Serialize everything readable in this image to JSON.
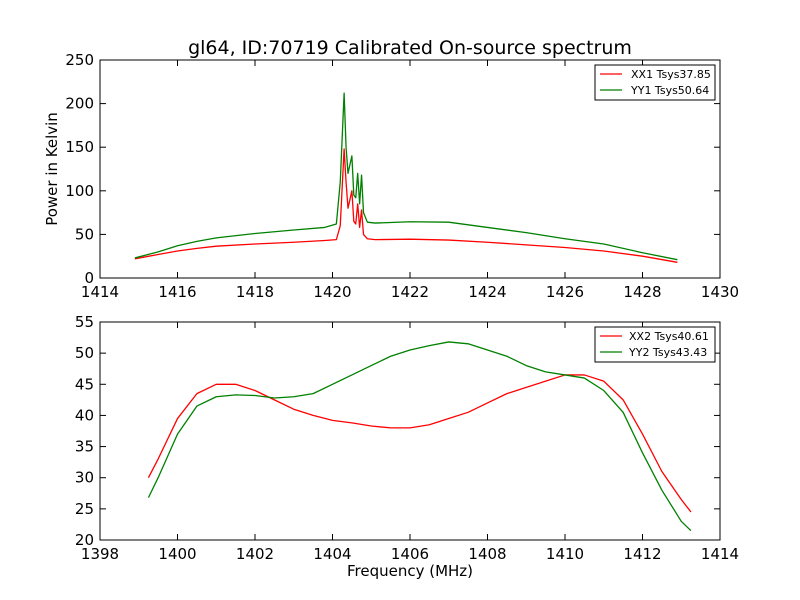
{
  "chart_data": [
    {
      "type": "line",
      "title": "gl64, ID:70719 Calibrated On-source spectrum",
      "xlabel": "",
      "ylabel": "Power in Kelvin",
      "xlim": [
        1414,
        1430
      ],
      "ylim": [
        0,
        250
      ],
      "xticks": [
        "1414",
        "1416",
        "1418",
        "1420",
        "1422",
        "1424",
        "1426",
        "1428",
        "1430"
      ],
      "yticks": [
        "0",
        "50",
        "100",
        "150",
        "200",
        "250"
      ],
      "grid": false,
      "legend_position": "top-right",
      "series": [
        {
          "name": "XX1 Tsys37.85",
          "color": "#ff0000",
          "x": [
            1414.9,
            1415.5,
            1416,
            1416.5,
            1417,
            1418,
            1419,
            1419.8,
            1420.1,
            1420.2,
            1420.3,
            1420.35,
            1420.4,
            1420.5,
            1420.55,
            1420.6,
            1420.65,
            1420.7,
            1420.75,
            1420.8,
            1420.9,
            1421.1,
            1422,
            1423,
            1424,
            1425,
            1426,
            1427,
            1428,
            1428.9
          ],
          "y": [
            22,
            27,
            31,
            34,
            36.5,
            39,
            41,
            43,
            44,
            60,
            148,
            110,
            80,
            100,
            65,
            62,
            85,
            58,
            78,
            50,
            45,
            44,
            44.5,
            43.5,
            41,
            38,
            35,
            31,
            25,
            18
          ]
        },
        {
          "name": "YY1 Tsys50.64",
          "color": "#008000",
          "x": [
            1414.9,
            1415.5,
            1416,
            1416.5,
            1417,
            1418,
            1419,
            1419.8,
            1420.1,
            1420.2,
            1420.3,
            1420.35,
            1420.4,
            1420.5,
            1420.55,
            1420.6,
            1420.65,
            1420.7,
            1420.75,
            1420.8,
            1420.9,
            1421.1,
            1422,
            1423,
            1424,
            1425,
            1426,
            1427,
            1428,
            1428.9
          ],
          "y": [
            23,
            30,
            37,
            42,
            46,
            51,
            55,
            58,
            62,
            110,
            212,
            150,
            120,
            140,
            95,
            92,
            120,
            85,
            118,
            75,
            64,
            63,
            64.5,
            64,
            58,
            52,
            45,
            39,
            29,
            21
          ]
        }
      ]
    },
    {
      "type": "line",
      "title": "",
      "xlabel": "Frequency (MHz)",
      "ylabel": "",
      "xlim": [
        1398,
        1414
      ],
      "ylim": [
        20,
        55
      ],
      "xticks": [
        "1398",
        "1400",
        "1402",
        "1404",
        "1406",
        "1408",
        "1410",
        "1412",
        "1414"
      ],
      "yticks": [
        "20",
        "25",
        "30",
        "35",
        "40",
        "45",
        "50",
        "55"
      ],
      "grid": false,
      "legend_position": "top-right",
      "series": [
        {
          "name": "XX2 Tsys40.61",
          "color": "#ff0000",
          "x": [
            1399.25,
            1399.5,
            1400,
            1400.5,
            1401,
            1401.5,
            1402,
            1402.5,
            1403,
            1403.5,
            1404,
            1404.5,
            1405,
            1405.5,
            1406,
            1406.5,
            1407,
            1407.5,
            1408,
            1408.5,
            1409,
            1409.5,
            1410,
            1410.5,
            1411,
            1411.5,
            1412,
            1412.5,
            1413,
            1413.25
          ],
          "y": [
            30,
            33,
            39.5,
            43.5,
            45,
            45,
            44,
            42.5,
            41,
            40,
            39.2,
            38.8,
            38.3,
            38,
            38,
            38.5,
            39.5,
            40.5,
            42,
            43.5,
            44.5,
            45.5,
            46.5,
            46.5,
            45.5,
            42.5,
            37,
            31,
            26.5,
            24.5
          ]
        },
        {
          "name": "YY2 Tsys43.43",
          "color": "#008000",
          "x": [
            1399.25,
            1399.5,
            1400,
            1400.5,
            1401,
            1401.5,
            1402,
            1402.5,
            1403,
            1403.5,
            1404,
            1404.5,
            1405,
            1405.5,
            1406,
            1406.5,
            1407,
            1407.5,
            1408,
            1408.5,
            1409,
            1409.5,
            1410,
            1410.5,
            1411,
            1411.5,
            1412,
            1412.5,
            1413,
            1413.25
          ],
          "y": [
            26.8,
            30,
            37,
            41.5,
            43,
            43.3,
            43.2,
            42.8,
            43,
            43.5,
            45,
            46.5,
            48,
            49.5,
            50.5,
            51.2,
            51.8,
            51.5,
            50.5,
            49.5,
            48,
            47,
            46.5,
            46,
            44,
            40.5,
            34,
            28,
            23,
            21.5
          ]
        }
      ]
    }
  ]
}
